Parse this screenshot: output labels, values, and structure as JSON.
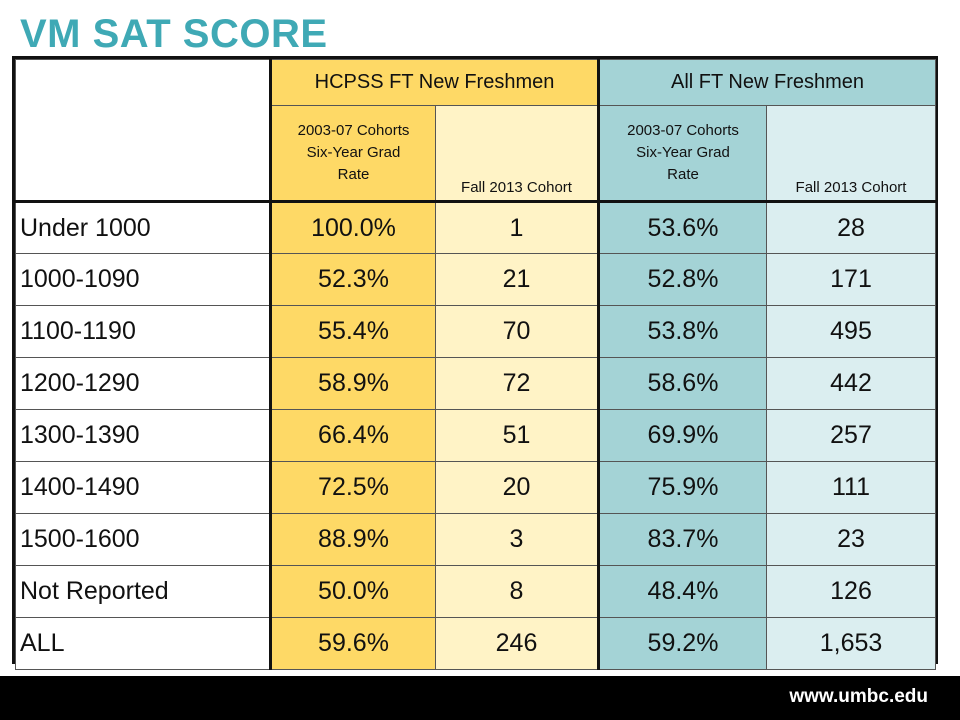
{
  "title": "VM SAT SCORE",
  "footer_url": "www.umbc.edu",
  "group_headers": {
    "hcpss": "HCPSS FT New Freshmen",
    "all": "All FT New Freshmen"
  },
  "sub_headers": {
    "hcpss_rate": [
      "2003-07 Cohorts",
      "Six-Year Grad",
      "Rate"
    ],
    "hcpss_cohort": "Fall 2013 Cohort",
    "all_rate": [
      "2003-07 Cohorts",
      "Six-Year Grad",
      "Rate"
    ],
    "all_cohort": "Fall 2013 Cohort"
  },
  "rows": [
    {
      "label": "Under 1000",
      "hcpss_rate": "100.0%",
      "hcpss_count": "1",
      "all_rate": "53.6%",
      "all_count": "28"
    },
    {
      "label": "1000-1090",
      "hcpss_rate": "52.3%",
      "hcpss_count": "21",
      "all_rate": "52.8%",
      "all_count": "171"
    },
    {
      "label": "1100-1190",
      "hcpss_rate": "55.4%",
      "hcpss_count": "70",
      "all_rate": "53.8%",
      "all_count": "495"
    },
    {
      "label": "1200-1290",
      "hcpss_rate": "58.9%",
      "hcpss_count": "72",
      "all_rate": "58.6%",
      "all_count": "442"
    },
    {
      "label": "1300-1390",
      "hcpss_rate": "66.4%",
      "hcpss_count": "51",
      "all_rate": "69.9%",
      "all_count": "257"
    },
    {
      "label": "1400-1490",
      "hcpss_rate": "72.5%",
      "hcpss_count": "20",
      "all_rate": "75.9%",
      "all_count": "111"
    },
    {
      "label": "1500-1600",
      "hcpss_rate": "88.9%",
      "hcpss_count": "3",
      "all_rate": "83.7%",
      "all_count": "23"
    },
    {
      "label": "Not Reported",
      "hcpss_rate": "50.0%",
      "hcpss_count": "8",
      "all_rate": "48.4%",
      "all_count": "126"
    },
    {
      "label": "ALL",
      "hcpss_rate": "59.6%",
      "hcpss_count": "246",
      "all_rate": "59.2%",
      "all_count": "1,653"
    }
  ],
  "colors": {
    "title": "#3fa9b5",
    "hcpss_dark": "#fed966",
    "hcpss_light": "#fff3c6",
    "all_dark": "#a4d3d6",
    "all_light": "#dbeef0",
    "footer_bg": "#000000"
  }
}
